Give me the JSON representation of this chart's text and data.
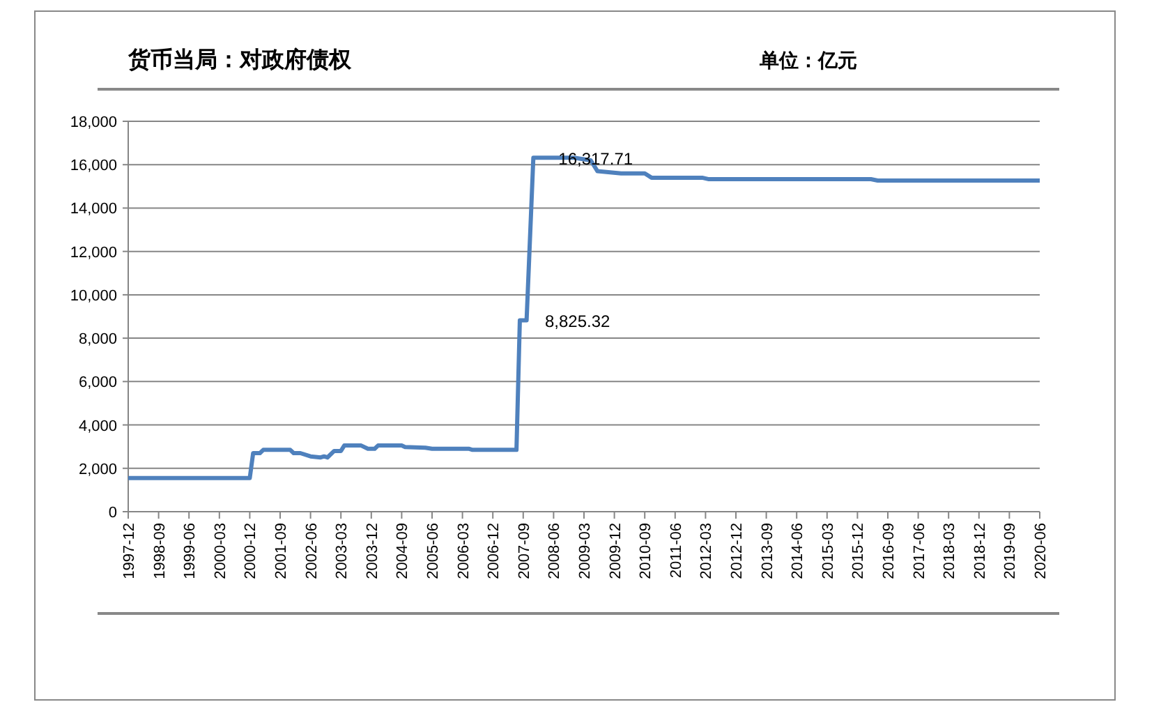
{
  "chart_data": {
    "type": "line",
    "title": "货币当局：对政府债权",
    "subtitle": "单位：亿元",
    "x": [
      "1997-12",
      "2000-12",
      "2001-01",
      "2001-03",
      "2001-04",
      "2001-12",
      "2002-01",
      "2002-03",
      "2002-06",
      "2002-09",
      "2002-10",
      "2002-11",
      "2003-01",
      "2003-03",
      "2003-04",
      "2003-09",
      "2003-11",
      "2004-01",
      "2004-02",
      "2004-09",
      "2004-10",
      "2005-04",
      "2005-06",
      "2006-05",
      "2006-06",
      "2007-07",
      "2007-08",
      "2007-10",
      "2007-12",
      "2008-12",
      "2009-05",
      "2009-07",
      "2010-02",
      "2010-09",
      "2010-11",
      "2012-02",
      "2012-04",
      "2016-04",
      "2016-06",
      "2020-06"
    ],
    "series": [
      {
        "color": "#4f81bd",
        "values": [
          1550,
          1550,
          2700,
          2700,
          2850,
          2850,
          2700,
          2700,
          2550,
          2500,
          2550,
          2500,
          2800,
          2800,
          3050,
          3050,
          2900,
          2900,
          3050,
          3050,
          2980,
          2950,
          2900,
          2900,
          2850,
          2850,
          8825.32,
          8825.32,
          16317.71,
          16317.71,
          16200,
          15700,
          15600,
          15600,
          15400,
          15400,
          15330,
          15330,
          15270,
          15270
        ]
      }
    ],
    "xlim": [
      "1997-12",
      "2020-06"
    ],
    "xticks": [
      "1997-12",
      "1998-09",
      "1999-06",
      "2000-03",
      "2000-12",
      "2001-09",
      "2002-06",
      "2003-03",
      "2003-12",
      "2004-09",
      "2005-06",
      "2006-03",
      "2006-12",
      "2007-09",
      "2008-06",
      "2009-03",
      "2009-12",
      "2010-09",
      "2011-06",
      "2012-03",
      "2012-12",
      "2013-09",
      "2014-06",
      "2015-03",
      "2015-12",
      "2016-09",
      "2017-06",
      "2018-03",
      "2018-12",
      "2019-09",
      "2020-06"
    ],
    "ylim": [
      0,
      18000
    ],
    "yticks": [
      0,
      {
        "value": 2000,
        "label": "2,000"
      },
      {
        "value": 4000,
        "label": "4,000"
      },
      {
        "value": 6000,
        "label": "6,000"
      },
      {
        "value": 8000,
        "label": "8,000"
      },
      {
        "value": 10000,
        "label": "10,000"
      },
      {
        "value": 12000,
        "label": "12,000"
      },
      {
        "value": 14000,
        "label": "14,000"
      },
      {
        "value": 16000,
        "label": "16,000"
      },
      {
        "value": 18000,
        "label": "18,000"
      }
    ],
    "grid": "y",
    "annotations": [
      {
        "text": "16,317.71",
        "x": "2007-12",
        "y": 16317.71
      },
      {
        "text": "8,825.32",
        "x": "2007-08",
        "y": 8825.32
      }
    ]
  }
}
